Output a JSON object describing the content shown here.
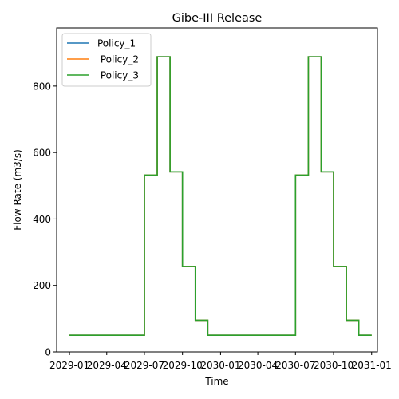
{
  "chart_data": {
    "type": "line",
    "title": "Gibe-III Release",
    "xlabel": "Time",
    "ylabel": "Flow Rate (m3/s)",
    "step": "post",
    "x_tick_labels": [
      "2029-01",
      "2029-04",
      "2029-07",
      "2029-10",
      "2030-01",
      "2030-04",
      "2030-07",
      "2030-10",
      "2031-01"
    ],
    "x_ticks": [
      "2029-01-01",
      "2029-04-01",
      "2029-07-01",
      "2029-10-01",
      "2030-01-01",
      "2030-04-01",
      "2030-07-01",
      "2030-10-01",
      "2031-01-01"
    ],
    "xlim": [
      "2028-12-01",
      "2031-01-15"
    ],
    "ylim": [
      0,
      975
    ],
    "y_ticks": [
      0,
      200,
      400,
      600,
      800
    ],
    "legend": "upper-left",
    "grid": false,
    "x": [
      "2029-01-01",
      "2029-02-01",
      "2029-03-01",
      "2029-04-01",
      "2029-05-01",
      "2029-06-01",
      "2029-07-01",
      "2029-08-01",
      "2029-09-01",
      "2029-10-01",
      "2029-11-01",
      "2029-12-01",
      "2030-01-01",
      "2030-02-01",
      "2030-03-01",
      "2030-04-01",
      "2030-05-01",
      "2030-06-01",
      "2030-07-01",
      "2030-08-01",
      "2030-09-01",
      "2030-10-01",
      "2030-11-01",
      "2030-12-01",
      "2031-01-01"
    ],
    "series": [
      {
        "name": "Policy_1",
        "color": "#1f77b4",
        "values": [
          50,
          50,
          50,
          50,
          50,
          50,
          532,
          888,
          542,
          257,
          95,
          50,
          50,
          50,
          50,
          50,
          50,
          50,
          532,
          888,
          542,
          257,
          95,
          50,
          50
        ]
      },
      {
        "name": " Policy_2",
        "color": "#ff7f0e",
        "values": [
          50,
          50,
          50,
          50,
          50,
          50,
          532,
          888,
          542,
          257,
          95,
          50,
          50,
          50,
          50,
          50,
          50,
          50,
          532,
          888,
          542,
          257,
          95,
          50,
          50
        ]
      },
      {
        "name": " Policy_3",
        "color": "#2ca02c",
        "values": [
          50,
          50,
          50,
          50,
          50,
          50,
          532,
          888,
          542,
          257,
          95,
          50,
          50,
          50,
          50,
          50,
          50,
          50,
          532,
          888,
          542,
          257,
          95,
          50,
          50
        ]
      }
    ]
  }
}
